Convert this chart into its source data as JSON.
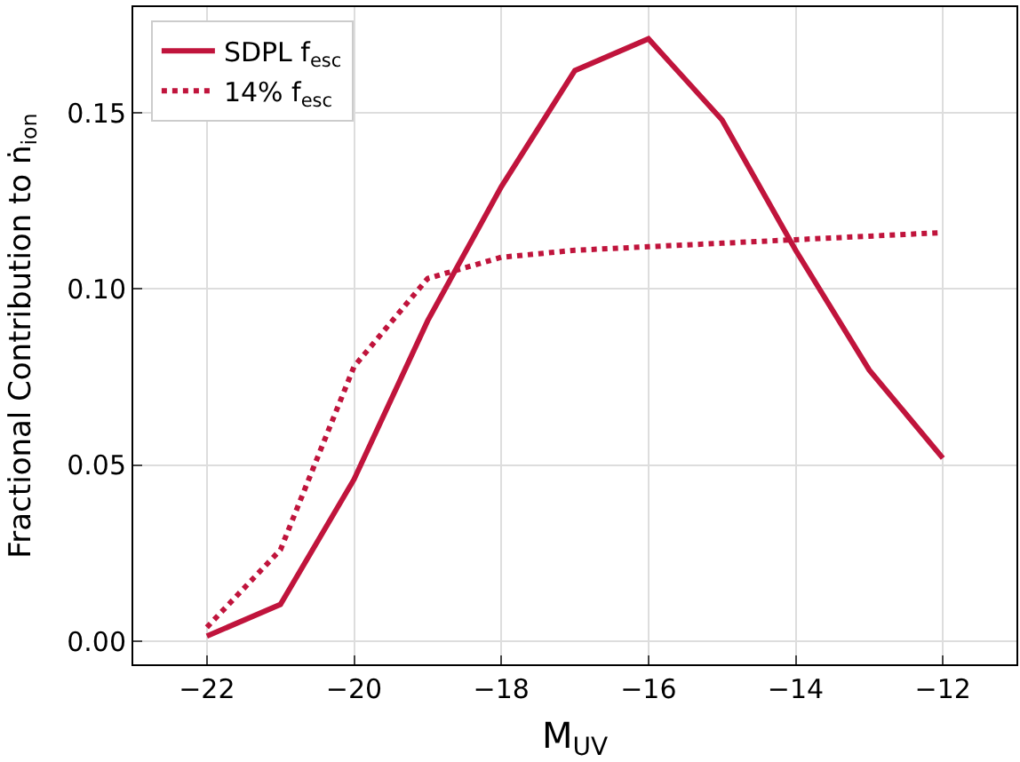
{
  "chart_data": {
    "type": "line",
    "xlabel": "M$_{UV}$",
    "ylabel": "Fractional Contribution to ṅ$_{ion}$",
    "x": [
      -22,
      -21,
      -20,
      -19,
      -18,
      -17,
      -16,
      -15,
      -14,
      -13,
      -12
    ],
    "series": [
      {
        "name": "SDPL f$_{esc}$",
        "color": "#c0143c",
        "line_style": "solid",
        "values": [
          0.0015,
          0.0105,
          0.046,
          0.091,
          0.129,
          0.162,
          0.171,
          0.148,
          0.111,
          0.077,
          0.052
        ]
      },
      {
        "name": "14% f$_{esc}$",
        "color": "#c0143c",
        "line_style": "dotted",
        "values": [
          0.004,
          0.026,
          0.078,
          0.103,
          0.109,
          0.111,
          0.112,
          0.113,
          0.114,
          0.115,
          0.116
        ]
      }
    ],
    "xlim": [
      -23,
      -11
    ],
    "xticks": [
      {
        "value": -22,
        "label": "−22"
      },
      {
        "value": -20,
        "label": "−20"
      },
      {
        "value": -18,
        "label": "−18"
      },
      {
        "value": -16,
        "label": "−16"
      },
      {
        "value": -14,
        "label": "−14"
      },
      {
        "value": -12,
        "label": "−12"
      }
    ],
    "ylim": [
      -0.0065,
      0.18
    ],
    "yticks": [
      {
        "value": 0,
        "label": "0.00"
      },
      {
        "value": 0.05,
        "label": "0.05"
      },
      {
        "value": 0.1,
        "label": "0.10"
      },
      {
        "value": 0.15,
        "label": "0.15"
      }
    ],
    "grid": true,
    "legend": "top left",
    "marker": "none"
  }
}
